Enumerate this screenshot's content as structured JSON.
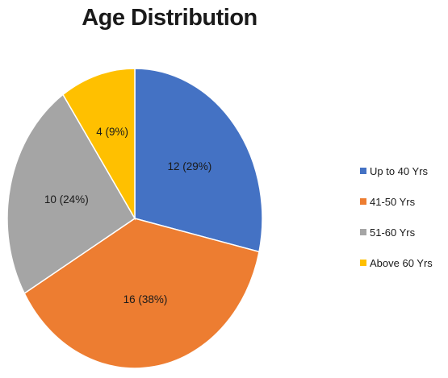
{
  "chart_data": {
    "type": "pie",
    "title": "Age Distribution",
    "categories": [
      "Up to 40 Yrs",
      "41-50 Yrs",
      "51-60 Yrs",
      "Above 60 Yrs"
    ],
    "values": [
      12,
      16,
      10,
      4
    ],
    "percentages": [
      29,
      38,
      24,
      9
    ],
    "labels": [
      "12 (29%)",
      "16 (38%)",
      "10 (24%)",
      "4 (9%)"
    ],
    "colors": [
      "#4472C4",
      "#ED7D31",
      "#A5A5A5",
      "#FFC000"
    ],
    "legend_position": "right"
  }
}
